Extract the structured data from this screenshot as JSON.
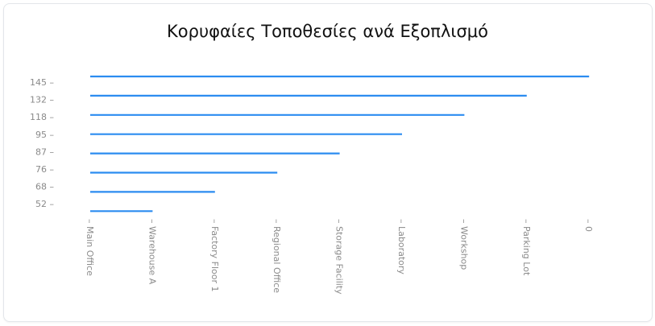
{
  "chart_data": {
    "type": "bar",
    "orientation": "horizontal",
    "title": "Κορυφαίες Τοποθεσίες ανά Εξοπλισμό",
    "y_tick_labels": [
      "145",
      "132",
      "118",
      "95",
      "87",
      "76",
      "68",
      "52"
    ],
    "x_tick_labels": [
      "Main Office",
      "Warehouse A",
      "Factory Floor 1",
      "Regional Office",
      "Storage Facility",
      "Laboratory",
      "Workshop",
      "Parking Lot",
      "0"
    ],
    "bars_end_at_x_tick": [
      "0",
      "Parking Lot",
      "Workshop",
      "Laboratory",
      "Storage Facility",
      "Regional Office",
      "Factory Floor 1",
      "Warehouse A"
    ],
    "bar_color": "#2b8cf0",
    "grid": false,
    "legend": "none"
  }
}
